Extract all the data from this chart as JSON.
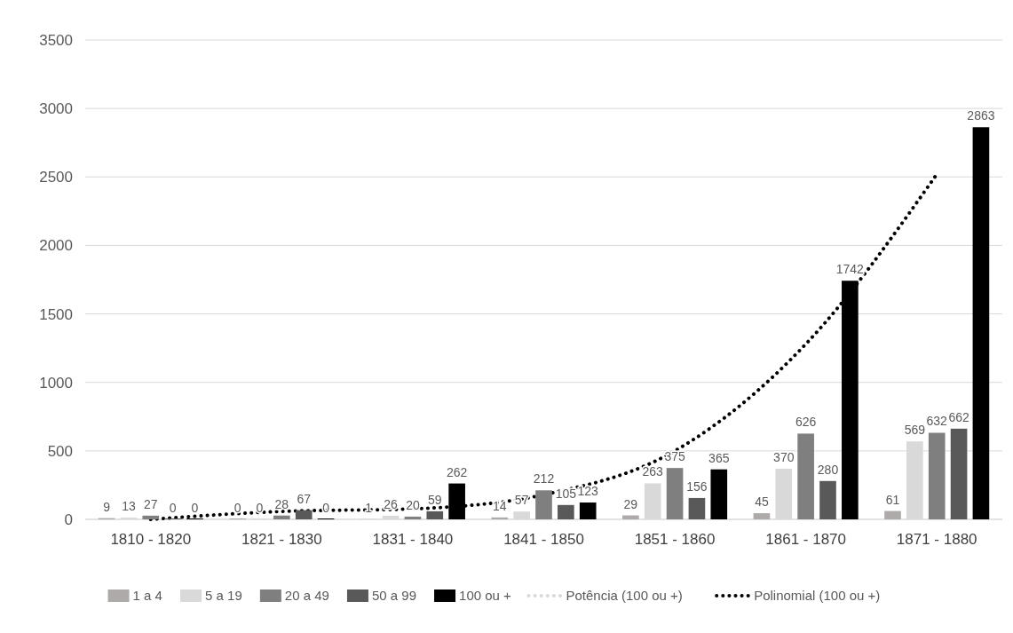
{
  "chart_data": {
    "type": "bar",
    "categories": [
      "1810 - 1820",
      "1821 - 1830",
      "1831 - 1840",
      "1841 - 1850",
      "1851 - 1860",
      "1861 - 1870",
      "1871 - 1880"
    ],
    "series": [
      {
        "name": "1 a 4",
        "color": "#aeaaaa",
        "values": [
          9,
          0,
          1,
          14,
          29,
          45,
          61
        ],
        "value_labels": [
          "9",
          "0",
          "1",
          "14",
          "29",
          "45",
          "61"
        ]
      },
      {
        "name": "5 a 19",
        "color": "#d9d9d9",
        "values": [
          13,
          0,
          26,
          57,
          263,
          370,
          569
        ],
        "value_labels": [
          "13",
          "0",
          "26",
          "57",
          "263",
          "370",
          "569"
        ]
      },
      {
        "name": "20 a 49",
        "color": "#7f7f7f",
        "values": [
          27,
          28,
          20,
          212,
          375,
          626,
          632
        ],
        "value_labels": [
          "27",
          "28",
          "20",
          "212",
          "375",
          "626",
          "632"
        ]
      },
      {
        "name": "50 a 99",
        "color": "#595959",
        "values": [
          0,
          67,
          59,
          105,
          156,
          280,
          662
        ],
        "value_labels": [
          "0",
          "67",
          "59",
          "105",
          "156",
          "280",
          "662"
        ]
      },
      {
        "name": "100 ou +",
        "color": "#000000",
        "values": [
          0,
          0,
          262,
          123,
          365,
          1742,
          2863
        ],
        "value_labels": [
          "0",
          "0",
          "262",
          "123",
          "365",
          "1742",
          "2863"
        ]
      },
      {
        "name": "Potência (100 ou +)",
        "type": "line",
        "color": "#d9d9d9",
        "line_style": "dotted",
        "values": [
          null,
          null,
          null,
          null,
          null,
          null,
          null
        ]
      },
      {
        "name": "Polinomial (100 ou +)",
        "type": "line",
        "color": "#000000",
        "line_style": "dotted",
        "values": [
          0,
          58,
          77,
          180,
          500,
          1280,
          2520
        ]
      }
    ],
    "ylim": [
      0,
      3500
    ],
    "yticks": [
      0,
      500,
      1000,
      1500,
      2000,
      2500,
      3000,
      3500
    ],
    "grid": "y",
    "legend": "bottom"
  }
}
